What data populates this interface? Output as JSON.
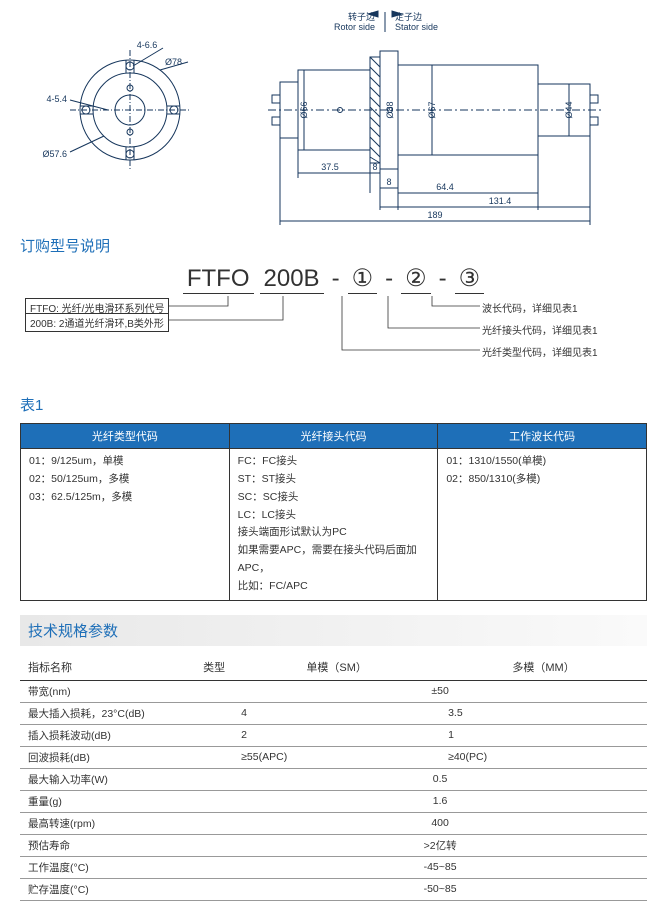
{
  "drawing": {
    "rotor_label_cn": "转子边",
    "rotor_label_en": "Rotor side",
    "stator_label_cn": "定子边",
    "stator_label_en": "Stator side",
    "dims": {
      "d1": "4-6.6",
      "d2": "Ø78",
      "d3": "Ø57.6",
      "d4": "4-5.4",
      "d5": "Ø66",
      "d6": "Ø88",
      "d7": "Ø67",
      "d8": "Ø44",
      "l1": "37.5",
      "l2": "8",
      "l3": "8",
      "l4": "64.4",
      "l5": "131.4",
      "l6": "189"
    },
    "stroke": "#16365c",
    "hatch": "#16365c",
    "text_color": "#16365c"
  },
  "order_section": {
    "title": "订购型号说明",
    "model": {
      "p1": "FTFO",
      "p2": "200B",
      "p3": "①",
      "p4": "②",
      "p5": "③",
      "sep": "-"
    },
    "left_labels": {
      "a": "FTFO: 光纤/光电滑环系列代号",
      "b": "200B: 2通道光纤滑环,B类外形"
    },
    "right_labels": {
      "a": "波长代码，详细见表1",
      "b": "光纤接头代码，详细见表1",
      "c": "光纤类型代码，详细见表1"
    }
  },
  "table1": {
    "title": "表1",
    "headers": {
      "c1": "光纤类型代码",
      "c2": "光纤接头代码",
      "c3": "工作波长代码"
    },
    "col1": [
      "01：9/125um，单模",
      "02：50/125um，多模",
      "03：62.5/125m，多模"
    ],
    "col2": [
      "FC：FC接头",
      "ST：ST接头",
      "SC：SC接头",
      "LC：LC接头",
      "接头端面形试默认为PC",
      "如果需要APC，需要在接头代码后面加APC，",
      "比如：FC/APC"
    ],
    "col3": [
      "01：1310/1550(单模)",
      "02：850/1310(多模)"
    ]
  },
  "specs": {
    "title": "技术规格参数",
    "header": {
      "name": "指标名称",
      "type": "类型",
      "sm": "单模（SM）",
      "mm": "多模（MM）"
    },
    "rows": [
      {
        "name": "带宽(nm)",
        "sm": "±50",
        "mm": "",
        "span": true
      },
      {
        "name": "最大插入损耗，23°C(dB)",
        "sm": "4",
        "mm": "3.5"
      },
      {
        "name": "插入损耗波动(dB)",
        "sm": "2",
        "mm": "1"
      },
      {
        "name": "回波损耗(dB)",
        "sm": "≥55(APC)",
        "mm": "≥40(PC)"
      },
      {
        "name": "最大输入功率(W)",
        "sm": "0.5",
        "mm": "",
        "span": true
      },
      {
        "name": "重量(g)",
        "sm": "1.6",
        "mm": "",
        "span": true
      },
      {
        "name": "最高转速(rpm)",
        "sm": "400",
        "mm": "",
        "span": true
      },
      {
        "name": "预估寿命",
        "sm": ">2亿转",
        "mm": "",
        "span": true
      },
      {
        "name": "工作温度(°C)",
        "sm": "-45~85",
        "mm": "",
        "span": true
      },
      {
        "name": "贮存温度(°C)",
        "sm": "-50~85",
        "mm": "",
        "span": true
      }
    ]
  }
}
